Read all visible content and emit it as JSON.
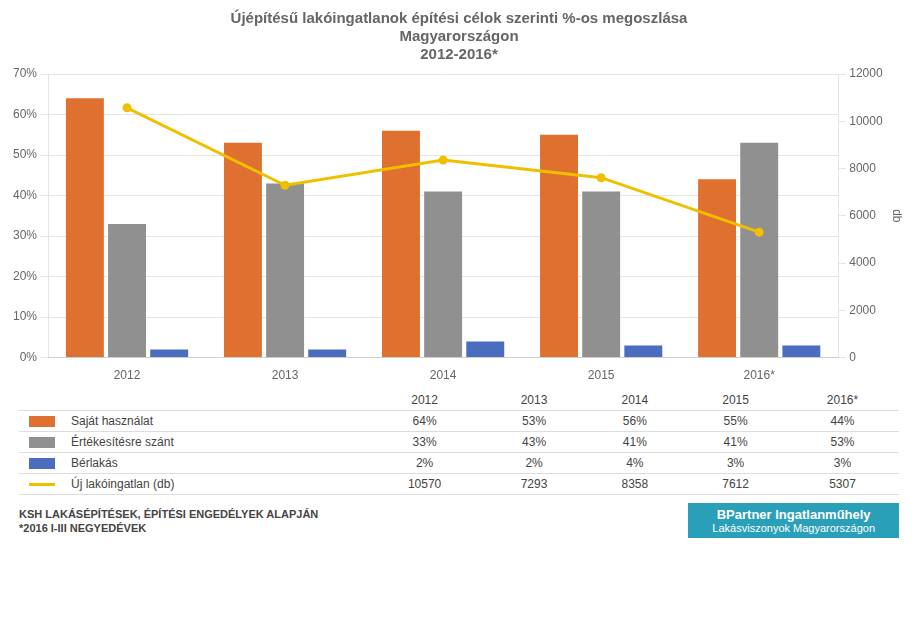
{
  "chart_data": {
    "type": "bar",
    "title": [
      "Újépítésű lakóingatlanok építési célok szerinti %-os megoszlása",
      "Magyarországon",
      "2012-2016*"
    ],
    "categories": [
      "2012",
      "2013",
      "2014",
      "2015",
      "2016*"
    ],
    "series": [
      {
        "name": "Saját használat",
        "color": "#e07030",
        "values": [
          64,
          53,
          56,
          55,
          44
        ],
        "value_labels": [
          "64%",
          "53%",
          "56%",
          "55%",
          "44%"
        ]
      },
      {
        "name": "Értékesítésre szánt",
        "color": "#909090",
        "values": [
          33,
          43,
          41,
          41,
          53
        ],
        "value_labels": [
          "33%",
          "43%",
          "41%",
          "41%",
          "53%"
        ]
      },
      {
        "name": "Bérlakás",
        "color": "#4a6dbf",
        "values": [
          2,
          2,
          4,
          3,
          3
        ],
        "value_labels": [
          "2%",
          "2%",
          "4%",
          "3%",
          "3%"
        ]
      },
      {
        "name": "Új lakóingatlan (db)",
        "type": "line",
        "axis": "y2",
        "color": "#f0c000",
        "values": [
          10570,
          7293,
          8358,
          7612,
          5307
        ]
      }
    ],
    "ylim": [
      0,
      70
    ],
    "yticks": [
      {
        "value": 0,
        "label": "0%"
      },
      {
        "value": 10,
        "label": "10%"
      },
      {
        "value": 20,
        "label": "20%"
      },
      {
        "value": 30,
        "label": "30%"
      },
      {
        "value": 40,
        "label": "40%"
      },
      {
        "value": 50,
        "label": "50%"
      },
      {
        "value": 60,
        "label": "60%"
      },
      {
        "value": 70,
        "label": "70%"
      }
    ],
    "y2lim": [
      0,
      12000
    ],
    "y2ticks": [
      0,
      2000,
      4000,
      6000,
      8000,
      10000,
      12000
    ],
    "y2label": "db",
    "grid": true,
    "legend": "bottom",
    "annotations": [
      "KSH LAKÁSÉPÍTÉSEK, ÉPÍTÉSI ENGEDÉLYEK ALAPJÁN",
      "*2016 I-III NEGYEDÉVEK",
      "BPartner Ingatlanműhely",
      "Lakásviszonyok Magyarországon"
    ]
  }
}
